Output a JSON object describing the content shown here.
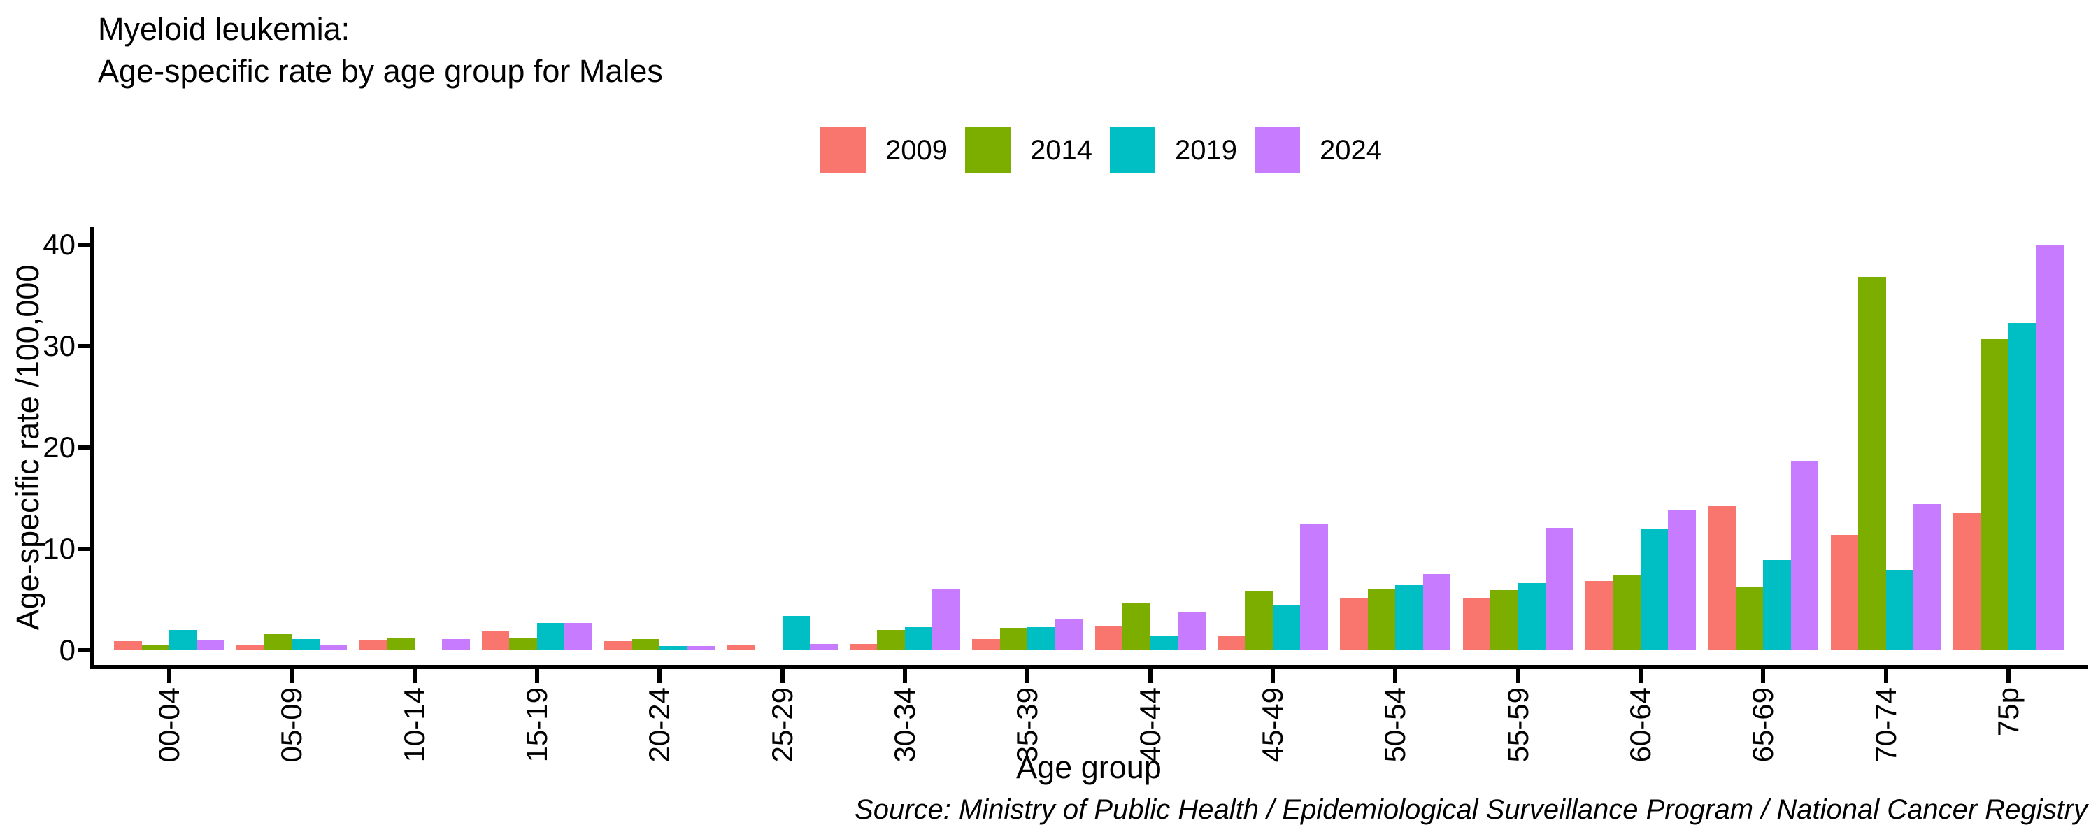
{
  "title": {
    "line1": "Myeloid leukemia:",
    "line2": "Age-specific rate by age group for Males"
  },
  "source": {
    "text": "Source: Ministry of Public Health / Epidemiological Surveillance Program / National Cancer Registry"
  },
  "chart_data": {
    "type": "bar",
    "title": "Myeloid leukemia: Age-specific rate by age group for Males",
    "xlabel": "Age group",
    "ylabel": "Age-specific rate /100,000",
    "ylim": [
      0,
      40
    ],
    "yticks": [
      0,
      10,
      20,
      30,
      40
    ],
    "grid": false,
    "legend_position": "top",
    "categories": [
      "00-04",
      "05-09",
      "10-14",
      "15-19",
      "20-24",
      "25-29",
      "30-34",
      "35-39",
      "40-44",
      "45-49",
      "50-54",
      "55-59",
      "60-64",
      "65-69",
      "70-74",
      "75p"
    ],
    "series": [
      {
        "name": "2009",
        "color": "#F8766D",
        "values": [
          0.9,
          0.5,
          1.0,
          1.9,
          0.9,
          0.5,
          0.6,
          1.1,
          2.4,
          1.4,
          5.1,
          5.2,
          6.8,
          14.2,
          11.4,
          13.5
        ]
      },
      {
        "name": "2014",
        "color": "#7CAE00",
        "values": [
          0.5,
          1.6,
          1.2,
          1.2,
          1.1,
          0.0,
          2.0,
          2.2,
          4.7,
          5.8,
          6.0,
          5.9,
          7.4,
          6.3,
          36.8,
          30.7
        ]
      },
      {
        "name": "2019",
        "color": "#00BFC4",
        "values": [
          2.0,
          1.1,
          0.0,
          2.7,
          0.4,
          3.4,
          2.3,
          2.3,
          1.4,
          4.5,
          6.4,
          6.6,
          12.0,
          8.9,
          7.9,
          32.3
        ]
      },
      {
        "name": "2024",
        "color": "#C77CFF",
        "values": [
          1.0,
          0.5,
          1.1,
          2.7,
          0.4,
          0.6,
          6.0,
          3.1,
          3.7,
          12.4,
          7.5,
          12.1,
          13.8,
          18.6,
          14.4,
          40.0
        ]
      }
    ]
  }
}
